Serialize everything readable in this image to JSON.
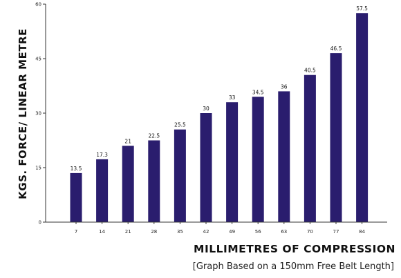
{
  "colors": {
    "bar": "#2a1d6e",
    "axis": "#333333",
    "text": "#111111"
  },
  "chart_data": {
    "type": "bar",
    "categories": [
      "7",
      "14",
      "21",
      "28",
      "35",
      "42",
      "49",
      "56",
      "63",
      "70",
      "77",
      "84"
    ],
    "values": [
      13.5,
      17.3,
      21,
      22.5,
      25.5,
      30,
      33,
      34.5,
      36,
      40.5,
      46.5,
      57.5
    ],
    "value_labels": [
      "13.5",
      "17.3",
      "21",
      "22.5",
      "25.5",
      "30",
      "33",
      "34.5",
      "36",
      "40.5",
      "46.5",
      "57.5"
    ],
    "yticks": [
      "0",
      "15",
      "30",
      "45",
      "60"
    ],
    "ylim": [
      0,
      60
    ],
    "xlabel": "MILLIMETRES OF COMPRESSION",
    "ylabel": "KGS. FORCE/ LINEAR METRE",
    "note": "[Graph Based on a 150mm Free Belt Length]",
    "grid": false,
    "legend": "none"
  }
}
